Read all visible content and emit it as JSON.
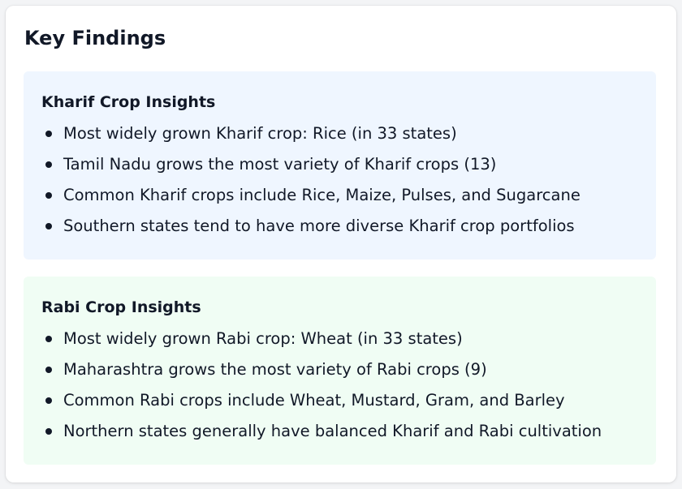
{
  "title": "Key Findings",
  "kharif": {
    "heading": "Kharif Crop Insights",
    "items": [
      "Most widely grown Kharif crop: Rice (in 33 states)",
      "Tamil Nadu grows the most variety of Kharif crops (13)",
      "Common Kharif crops include Rice, Maize, Pulses, and Sugarcane",
      "Southern states tend to have more diverse Kharif crop portfolios"
    ]
  },
  "rabi": {
    "heading": "Rabi Crop Insights",
    "items": [
      "Most widely grown Rabi crop: Wheat (in 33 states)",
      "Maharashtra grows the most variety of Rabi crops (9)",
      "Common Rabi crops include Wheat, Mustard, Gram, and Barley",
      "Northern states generally have balanced Kharif and Rabi cultivation"
    ]
  },
  "colors": {
    "kharif_bg": "#eff6ff",
    "rabi_bg": "#f0fdf4",
    "text": "#111827"
  }
}
